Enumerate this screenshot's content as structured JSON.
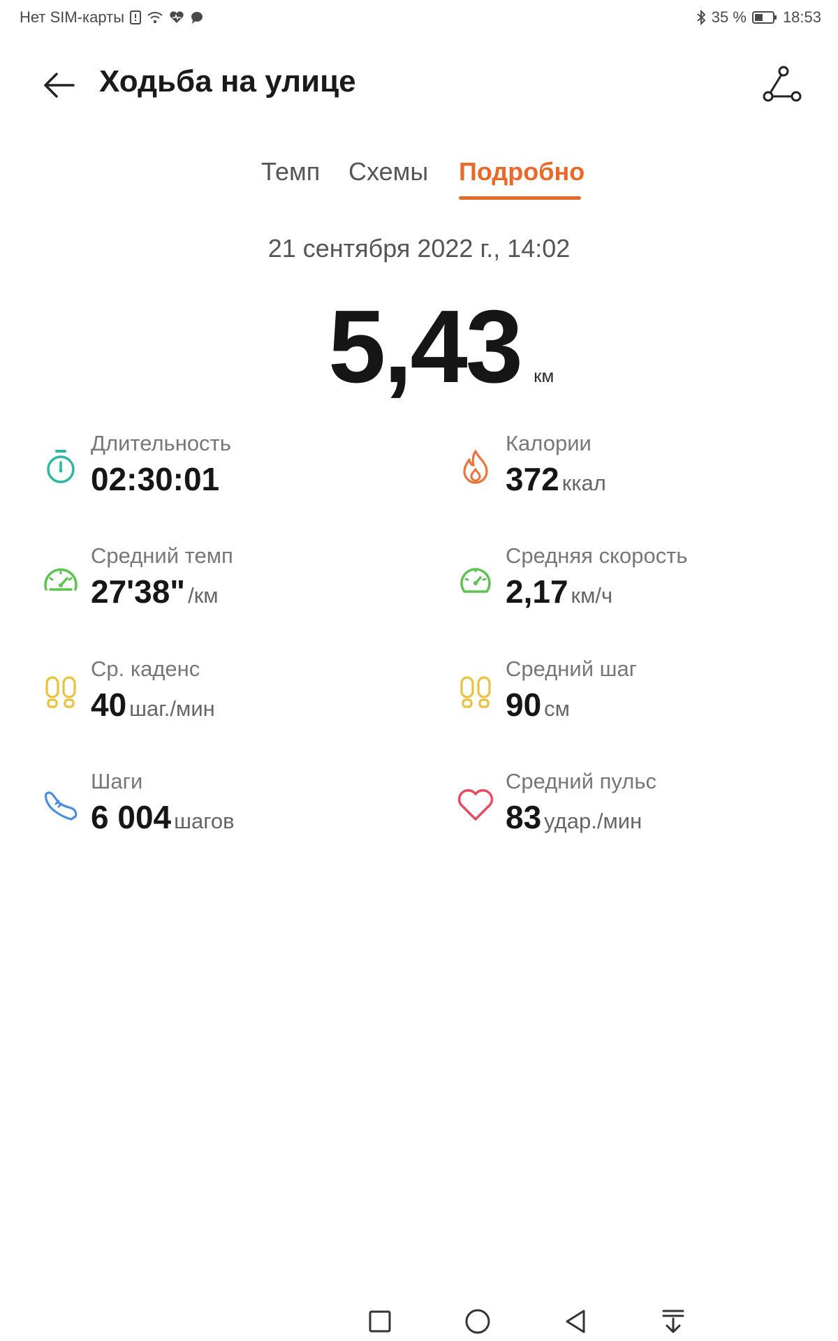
{
  "status_bar": {
    "carrier": "Нет SIM-карты",
    "battery": "35 %",
    "time": "18:53"
  },
  "header": {
    "title": "Ходьба на улице"
  },
  "tabs": [
    {
      "label": "Темп",
      "active": false
    },
    {
      "label": "Схемы",
      "active": false
    },
    {
      "label": "Подробно",
      "active": true
    }
  ],
  "summary": {
    "date": "21 сентября 2022 г., 14:02",
    "distance": "5,43",
    "distance_unit": "км"
  },
  "metrics": {
    "duration": {
      "label": "Длительность",
      "value": "02:30:01",
      "unit": ""
    },
    "calories": {
      "label": "Калории",
      "value": "372",
      "unit": "ккал"
    },
    "avg_pace": {
      "label": "Средний темп",
      "value": "27'38\"",
      "unit": "/км"
    },
    "avg_speed": {
      "label": "Средняя скорость",
      "value": "2,17",
      "unit": "км/ч"
    },
    "cadence": {
      "label": "Ср. каденс",
      "value": "40",
      "unit": "шаг./мин"
    },
    "avg_stride": {
      "label": "Средний шаг",
      "value": "90",
      "unit": "см"
    },
    "steps": {
      "label": "Шаги",
      "value": "6 004",
      "unit": "шагов"
    },
    "avg_heart_rate": {
      "label": "Средний пульс",
      "value": "83",
      "unit": "удар./мин"
    }
  },
  "colors": {
    "accent": "#e86a2a",
    "teal": "#2bb8a0",
    "green": "#5cc34e",
    "yellow": "#e8c23a",
    "blue": "#4a8ee0",
    "red": "#e84a5f",
    "orange": "#e8743a"
  }
}
